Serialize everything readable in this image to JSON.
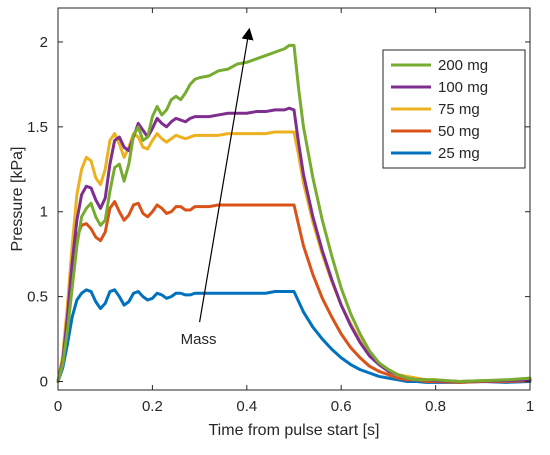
{
  "chart_data": {
    "type": "line",
    "xlabel": "Time from pulse start [s]",
    "ylabel": "Pressure [kPa]",
    "xlim": [
      0,
      1
    ],
    "ylim": [
      -0.05,
      2.2
    ],
    "xticks": [
      0,
      0.2,
      0.4,
      0.6,
      0.8,
      1
    ],
    "xtick_labels": [
      "0",
      "0.2",
      "0.4",
      "0.6",
      "0.8",
      "1"
    ],
    "yticks": [
      0,
      0.5,
      1,
      1.5,
      2
    ],
    "ytick_labels": [
      "0",
      "0.5",
      "1",
      "1.5",
      "2"
    ],
    "grid": false,
    "legend_position": "top-right",
    "legend": [
      "200 mg",
      "100 mg",
      "75 mg",
      "50 mg",
      "25 mg"
    ],
    "series": [
      {
        "name": "200 mg",
        "color": "#77AC30",
        "x": [
          0,
          0.01,
          0.02,
          0.03,
          0.04,
          0.05,
          0.06,
          0.07,
          0.08,
          0.09,
          0.1,
          0.11,
          0.12,
          0.13,
          0.14,
          0.15,
          0.16,
          0.17,
          0.18,
          0.19,
          0.2,
          0.21,
          0.22,
          0.23,
          0.24,
          0.25,
          0.26,
          0.27,
          0.28,
          0.29,
          0.3,
          0.32,
          0.34,
          0.36,
          0.38,
          0.4,
          0.42,
          0.44,
          0.46,
          0.48,
          0.49,
          0.5,
          0.51,
          0.52,
          0.54,
          0.56,
          0.58,
          0.6,
          0.62,
          0.64,
          0.66,
          0.68,
          0.7,
          0.72,
          0.74,
          0.76,
          0.78,
          0.8,
          0.85,
          0.9,
          0.95,
          1.0
        ],
        "values": [
          0,
          0.1,
          0.3,
          0.55,
          0.8,
          0.97,
          1.02,
          1.05,
          0.97,
          0.92,
          0.95,
          1.12,
          1.26,
          1.28,
          1.18,
          1.28,
          1.45,
          1.5,
          1.42,
          1.44,
          1.56,
          1.62,
          1.57,
          1.6,
          1.66,
          1.68,
          1.66,
          1.7,
          1.75,
          1.78,
          1.79,
          1.8,
          1.83,
          1.84,
          1.87,
          1.88,
          1.9,
          1.92,
          1.94,
          1.96,
          1.98,
          1.98,
          1.72,
          1.5,
          1.2,
          0.95,
          0.74,
          0.55,
          0.4,
          0.28,
          0.18,
          0.11,
          0.07,
          0.04,
          0.02,
          0.01,
          0.01,
          0.01,
          0.0,
          0.005,
          0.01,
          0.02
        ]
      },
      {
        "name": "100 mg",
        "color": "#7E2F8E",
        "x": [
          0,
          0.01,
          0.02,
          0.03,
          0.04,
          0.05,
          0.06,
          0.07,
          0.08,
          0.09,
          0.1,
          0.11,
          0.12,
          0.13,
          0.14,
          0.15,
          0.16,
          0.17,
          0.18,
          0.19,
          0.2,
          0.21,
          0.22,
          0.23,
          0.24,
          0.25,
          0.26,
          0.27,
          0.28,
          0.29,
          0.3,
          0.32,
          0.34,
          0.36,
          0.38,
          0.4,
          0.42,
          0.44,
          0.46,
          0.48,
          0.49,
          0.5,
          0.51,
          0.52,
          0.54,
          0.56,
          0.58,
          0.6,
          0.62,
          0.64,
          0.66,
          0.68,
          0.7,
          0.72,
          0.74,
          0.76,
          0.78,
          0.8,
          0.85,
          0.9,
          0.95,
          1.0
        ],
        "values": [
          0,
          0.12,
          0.38,
          0.7,
          0.95,
          1.1,
          1.15,
          1.14,
          1.07,
          1.02,
          1.08,
          1.28,
          1.42,
          1.44,
          1.38,
          1.36,
          1.44,
          1.52,
          1.48,
          1.44,
          1.49,
          1.55,
          1.52,
          1.5,
          1.53,
          1.55,
          1.54,
          1.53,
          1.55,
          1.56,
          1.56,
          1.56,
          1.57,
          1.58,
          1.58,
          1.58,
          1.59,
          1.59,
          1.6,
          1.6,
          1.61,
          1.6,
          1.4,
          1.22,
          0.97,
          0.77,
          0.6,
          0.45,
          0.33,
          0.23,
          0.15,
          0.1,
          0.06,
          0.04,
          0.02,
          0.01,
          0.01,
          0.005,
          0.0,
          0.003,
          0.005,
          0.01
        ]
      },
      {
        "name": "75 mg",
        "color": "#EDB120",
        "x": [
          0,
          0.01,
          0.02,
          0.03,
          0.04,
          0.05,
          0.06,
          0.07,
          0.08,
          0.09,
          0.1,
          0.11,
          0.12,
          0.13,
          0.14,
          0.15,
          0.16,
          0.17,
          0.18,
          0.19,
          0.2,
          0.21,
          0.22,
          0.23,
          0.24,
          0.25,
          0.26,
          0.27,
          0.28,
          0.29,
          0.3,
          0.32,
          0.34,
          0.36,
          0.38,
          0.4,
          0.42,
          0.44,
          0.46,
          0.48,
          0.49,
          0.5,
          0.51,
          0.52,
          0.54,
          0.56,
          0.58,
          0.6,
          0.62,
          0.64,
          0.66,
          0.68,
          0.7,
          0.72,
          0.74,
          0.76,
          0.78,
          0.8,
          0.85,
          0.9,
          0.95,
          1.0
        ],
        "values": [
          0,
          0.15,
          0.45,
          0.8,
          1.1,
          1.25,
          1.32,
          1.3,
          1.2,
          1.16,
          1.25,
          1.42,
          1.46,
          1.4,
          1.32,
          1.38,
          1.46,
          1.44,
          1.38,
          1.37,
          1.42,
          1.46,
          1.43,
          1.41,
          1.43,
          1.45,
          1.44,
          1.43,
          1.44,
          1.45,
          1.45,
          1.45,
          1.45,
          1.46,
          1.46,
          1.46,
          1.46,
          1.46,
          1.47,
          1.47,
          1.47,
          1.47,
          1.33,
          1.17,
          0.94,
          0.75,
          0.59,
          0.45,
          0.34,
          0.24,
          0.16,
          0.11,
          0.07,
          0.04,
          0.03,
          0.02,
          0.01,
          0.01,
          0.0,
          0.005,
          0.005,
          0.01
        ]
      },
      {
        "name": "50 mg",
        "color": "#D95319",
        "x": [
          0,
          0.01,
          0.02,
          0.03,
          0.04,
          0.05,
          0.06,
          0.07,
          0.08,
          0.09,
          0.1,
          0.11,
          0.12,
          0.13,
          0.14,
          0.15,
          0.16,
          0.17,
          0.18,
          0.19,
          0.2,
          0.21,
          0.22,
          0.23,
          0.24,
          0.25,
          0.26,
          0.27,
          0.28,
          0.29,
          0.3,
          0.32,
          0.34,
          0.36,
          0.38,
          0.4,
          0.42,
          0.44,
          0.46,
          0.48,
          0.49,
          0.5,
          0.51,
          0.52,
          0.54,
          0.56,
          0.58,
          0.6,
          0.62,
          0.64,
          0.66,
          0.68,
          0.7,
          0.72,
          0.74,
          0.76,
          0.78,
          0.8,
          0.85,
          0.9,
          0.95,
          1.0
        ],
        "values": [
          0,
          0.14,
          0.4,
          0.68,
          0.85,
          0.92,
          0.93,
          0.9,
          0.85,
          0.83,
          0.88,
          1.02,
          1.06,
          1.0,
          0.95,
          0.98,
          1.04,
          1.05,
          0.99,
          0.97,
          1.0,
          1.04,
          1.02,
          0.99,
          1.0,
          1.03,
          1.03,
          1.01,
          1.01,
          1.03,
          1.03,
          1.03,
          1.04,
          1.04,
          1.04,
          1.04,
          1.04,
          1.04,
          1.04,
          1.04,
          1.04,
          1.04,
          0.92,
          0.8,
          0.63,
          0.49,
          0.38,
          0.28,
          0.2,
          0.14,
          0.09,
          0.06,
          0.04,
          0.02,
          0.01,
          0.01,
          0.0,
          0.0,
          -0.005,
          0.0,
          0.0,
          0.005
        ]
      },
      {
        "name": "25 mg",
        "color": "#0072BD",
        "x": [
          0,
          0.01,
          0.02,
          0.03,
          0.04,
          0.05,
          0.06,
          0.07,
          0.08,
          0.09,
          0.1,
          0.11,
          0.12,
          0.13,
          0.14,
          0.15,
          0.16,
          0.17,
          0.18,
          0.19,
          0.2,
          0.21,
          0.22,
          0.23,
          0.24,
          0.25,
          0.26,
          0.27,
          0.28,
          0.29,
          0.3,
          0.32,
          0.34,
          0.36,
          0.38,
          0.4,
          0.42,
          0.44,
          0.46,
          0.48,
          0.49,
          0.5,
          0.51,
          0.52,
          0.54,
          0.56,
          0.58,
          0.6,
          0.62,
          0.64,
          0.66,
          0.68,
          0.7,
          0.72,
          0.74,
          0.76,
          0.78,
          0.8,
          0.85,
          0.9,
          0.95,
          1.0
        ],
        "values": [
          0,
          0.08,
          0.22,
          0.38,
          0.48,
          0.52,
          0.54,
          0.53,
          0.47,
          0.43,
          0.46,
          0.53,
          0.54,
          0.5,
          0.45,
          0.47,
          0.52,
          0.53,
          0.5,
          0.48,
          0.49,
          0.52,
          0.51,
          0.49,
          0.5,
          0.52,
          0.52,
          0.51,
          0.51,
          0.52,
          0.52,
          0.52,
          0.52,
          0.52,
          0.52,
          0.52,
          0.52,
          0.52,
          0.53,
          0.53,
          0.53,
          0.53,
          0.47,
          0.41,
          0.32,
          0.25,
          0.19,
          0.14,
          0.1,
          0.07,
          0.05,
          0.03,
          0.02,
          0.01,
          0.0,
          0.0,
          -0.005,
          -0.005,
          -0.005,
          0.0,
          -0.005,
          0.0
        ]
      }
    ],
    "annotation": {
      "text": "Mass",
      "arrow_from": [
        0.3,
        0.35
      ],
      "arrow_to": [
        0.405,
        2.07
      ]
    }
  }
}
